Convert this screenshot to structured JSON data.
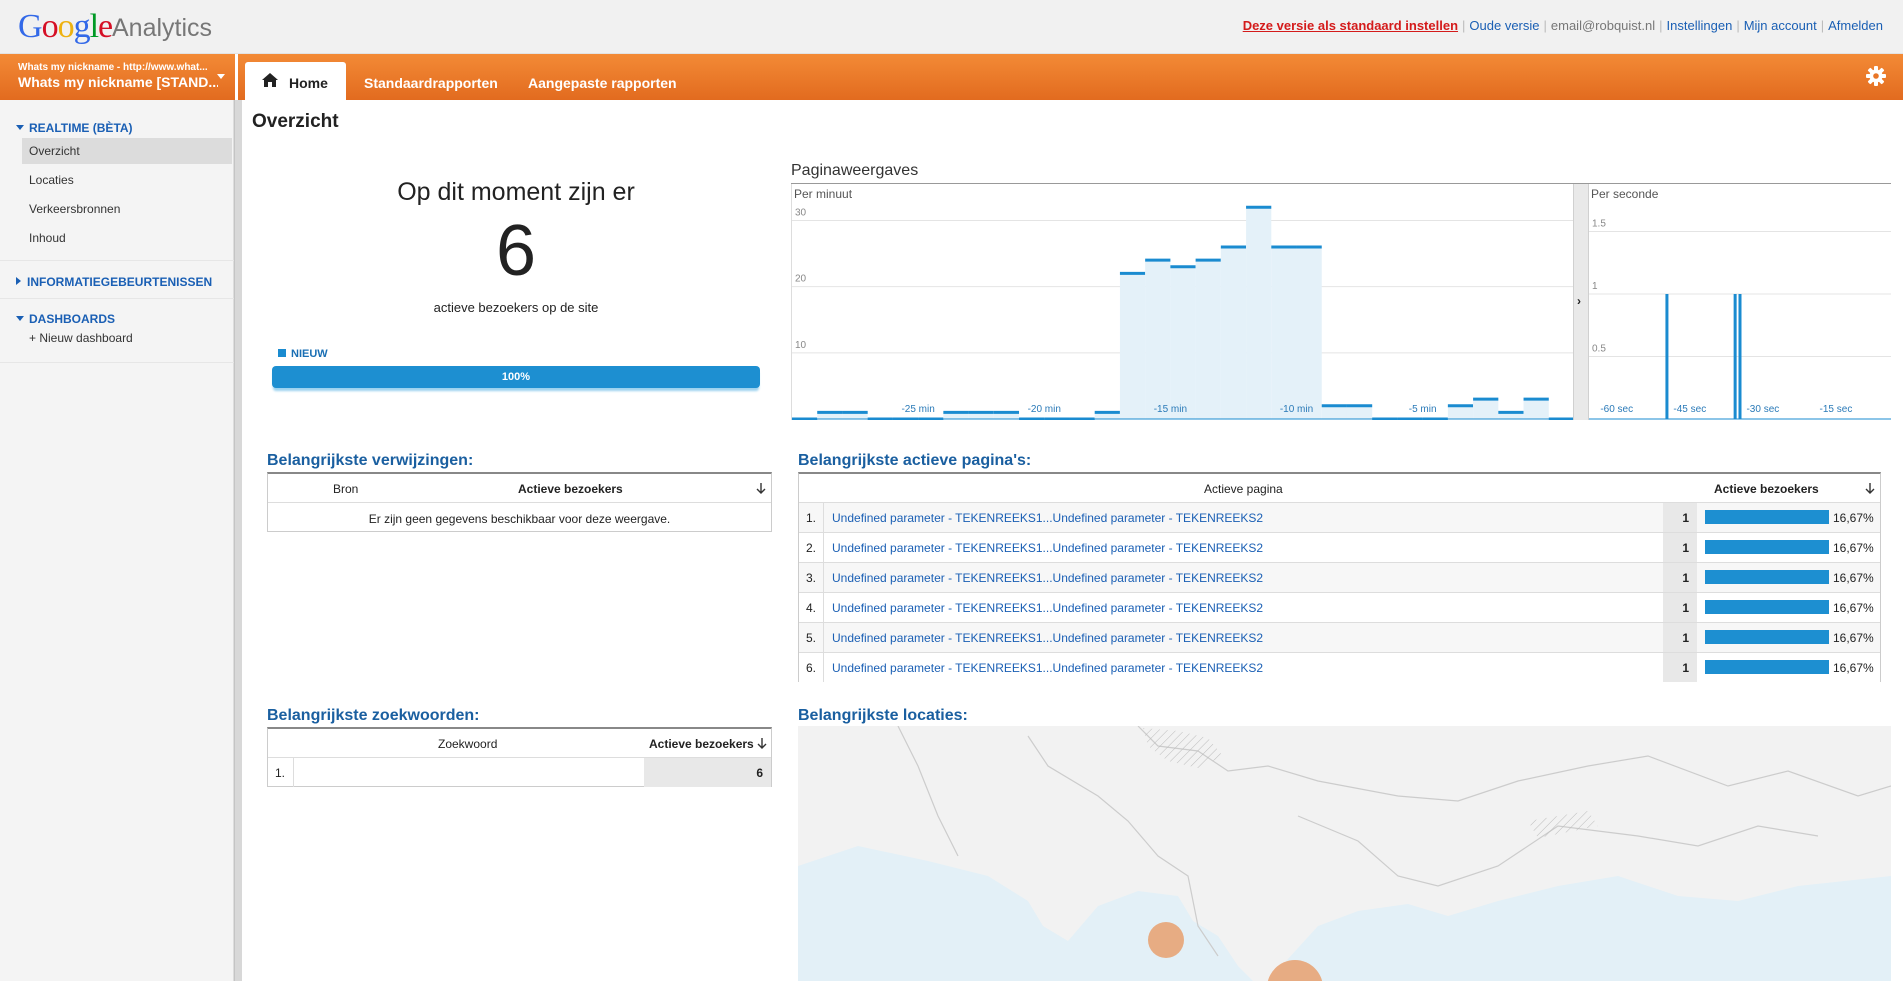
{
  "brand": {
    "google": "Google",
    "analytics": "Analytics"
  },
  "toplinks": {
    "set_default": "Deze versie als standaard instellen",
    "old_version": "Oude versie",
    "email": "email@robquist.nl",
    "settings": "Instellingen",
    "my_account": "Mijn account",
    "sign_out": "Afmelden"
  },
  "profile": {
    "site_line": "Whats my nickname - http://www.what...",
    "profile_line": "Whats my nickname [STAND..."
  },
  "nav": {
    "home": "Home",
    "standard_reports": "Standaardrapporten",
    "custom_reports": "Aangepaste rapporten"
  },
  "sidebar": {
    "realtime": "REALTIME (BÈTA)",
    "realtime_items": [
      "Overzicht",
      "Locaties",
      "Verkeersbronnen",
      "Inhoud"
    ],
    "intelligence": "INFORMATIEGEBEURTENISSEN",
    "dashboards": "DASHBOARDS",
    "new_dashboard": "+ Nieuw dashboard"
  },
  "page_title": "Overzicht",
  "now": {
    "heading": "Op dit moment zijn er",
    "count": "6",
    "subtext": "actieve bezoekers op de site",
    "legend_new": "NIEUW",
    "new_percent_label": "100%",
    "new_percent": 100
  },
  "pageviews": {
    "title": "Paginaweergaves",
    "per_minute_label": "Per minuut",
    "per_second_label": "Per seconde",
    "divider_glyph": "›"
  },
  "chart_data": [
    {
      "type": "bar",
      "title": "Per minuut",
      "x_tick_labels": [
        "-25 min",
        "-20 min",
        "-15 min",
        "-10 min",
        "-5 min"
      ],
      "y_ticks": [
        10,
        20,
        30
      ],
      "ylim": [
        0,
        34
      ],
      "values": [
        0,
        1,
        1,
        0,
        0,
        0,
        1,
        1,
        1,
        0,
        0,
        0,
        1,
        22,
        24,
        23,
        24,
        26,
        32,
        26,
        26,
        2,
        2,
        0,
        0,
        0,
        2,
        3,
        1,
        3,
        0
      ],
      "grid": true
    },
    {
      "type": "bar",
      "title": "Per seconde",
      "x_tick_labels": [
        "-60 sec",
        "-45 sec",
        "-30 sec",
        "-15 sec"
      ],
      "y_ticks": [
        0.5,
        1,
        1.5
      ],
      "ylim": [
        0,
        1.8
      ],
      "spikes_sec_ago": [
        46,
        32,
        31
      ],
      "spike_value": 1,
      "grid": true
    }
  ],
  "referrals": {
    "title": "Belangrijkste verwijzingen:",
    "col_source": "Bron",
    "col_active": "Actieve bezoekers",
    "empty": "Er zijn geen gegevens beschikbaar voor deze weergave."
  },
  "pages": {
    "title": "Belangrijkste actieve pagina's:",
    "col_page": "Actieve pagina",
    "col_active": "Actieve bezoekers",
    "rows": [
      {
        "n": "1.",
        "page": "Undefined parameter - TEKENREEKS1...Undefined parameter - TEKENREEKS2",
        "count": "1",
        "pct": "16,67%",
        "share": 16.67
      },
      {
        "n": "2.",
        "page": "Undefined parameter - TEKENREEKS1...Undefined parameter - TEKENREEKS2",
        "count": "1",
        "pct": "16,67%",
        "share": 16.67
      },
      {
        "n": "3.",
        "page": "Undefined parameter - TEKENREEKS1...Undefined parameter - TEKENREEKS2",
        "count": "1",
        "pct": "16,67%",
        "share": 16.67
      },
      {
        "n": "4.",
        "page": "Undefined parameter - TEKENREEKS1...Undefined parameter - TEKENREEKS2",
        "count": "1",
        "pct": "16,67%",
        "share": 16.67
      },
      {
        "n": "5.",
        "page": "Undefined parameter - TEKENREEKS1...Undefined parameter - TEKENREEKS2",
        "count": "1",
        "pct": "16,67%",
        "share": 16.67
      },
      {
        "n": "6.",
        "page": "Undefined parameter - TEKENREEKS1...Undefined parameter - TEKENREEKS2",
        "count": "1",
        "pct": "16,67%",
        "share": 16.67
      }
    ]
  },
  "keywords": {
    "title": "Belangrijkste zoekwoorden:",
    "col_keyword": "Zoekwoord",
    "col_active": "Actieve bezoekers",
    "rows": [
      {
        "n": "1.",
        "keyword": "",
        "count": "6"
      }
    ]
  },
  "locations": {
    "title": "Belangrijkste locaties:"
  },
  "colors": {
    "orange": "#e97627",
    "blue": "#1d8fd1",
    "link": "#1a5fb4",
    "marker": "#e8a06e"
  }
}
